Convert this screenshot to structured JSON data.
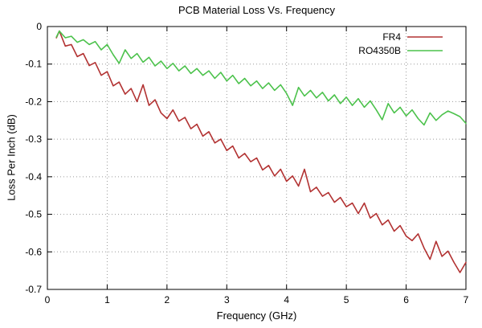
{
  "header": {
    "title": "PCB Material Loss Vs. Frequency"
  },
  "axes": {
    "x_label": "Frequency (GHz)",
    "y_label": "Loss Per Inch (dB)"
  },
  "colors": {
    "background": "#ffffff",
    "axis": "#000000",
    "grid": "#9a9a9a",
    "fr4": "#b23232",
    "ro4350b": "#4cc24c"
  },
  "legend": {
    "position": "top-right",
    "entries": [
      {
        "label": "FR4",
        "color": "#b23232"
      },
      {
        "label": "RO4350B",
        "color": "#4cc24c"
      }
    ]
  },
  "chart_data": {
    "type": "line",
    "title": "PCB Material Loss Vs. Frequency",
    "xlabel": "Frequency (GHz)",
    "ylabel": "Loss Per Inch (dB)",
    "xlim": [
      0,
      7
    ],
    "ylim": [
      -0.7,
      0
    ],
    "grid": true,
    "legend_position": "top-right",
    "xticks": {
      "values": [
        0,
        1,
        2,
        3,
        4,
        5,
        6,
        7
      ],
      "labels": [
        "0",
        "1",
        "2",
        "3",
        "4",
        "5",
        "6",
        "7"
      ]
    },
    "yticks": {
      "values": [
        0,
        -0.1,
        -0.2,
        -0.3,
        -0.4,
        -0.5,
        -0.6,
        -0.7
      ],
      "labels": [
        "0",
        "-0.1",
        "-0.2",
        "-0.3",
        "-0.4",
        "-0.5",
        "-0.6",
        "-0.7"
      ]
    },
    "x": [
      0.15,
      0.2,
      0.3,
      0.4,
      0.5,
      0.6,
      0.7,
      0.8,
      0.9,
      1.0,
      1.1,
      1.2,
      1.3,
      1.4,
      1.5,
      1.6,
      1.7,
      1.8,
      1.9,
      2.0,
      2.1,
      2.2,
      2.3,
      2.4,
      2.5,
      2.6,
      2.7,
      2.8,
      2.9,
      3.0,
      3.1,
      3.2,
      3.3,
      3.4,
      3.5,
      3.6,
      3.7,
      3.8,
      3.9,
      4.0,
      4.1,
      4.2,
      4.3,
      4.4,
      4.5,
      4.6,
      4.7,
      4.8,
      4.9,
      5.0,
      5.1,
      5.2,
      5.3,
      5.4,
      5.5,
      5.6,
      5.7,
      5.8,
      5.9,
      6.0,
      6.1,
      6.2,
      6.3,
      6.4,
      6.5,
      6.6,
      6.7,
      6.8,
      6.9,
      7.0
    ],
    "series": [
      {
        "name": "FR4",
        "color": "#b23232",
        "values": [
          -0.03,
          -0.012,
          -0.052,
          -0.048,
          -0.08,
          -0.072,
          -0.104,
          -0.096,
          -0.13,
          -0.12,
          -0.158,
          -0.148,
          -0.18,
          -0.165,
          -0.2,
          -0.155,
          -0.21,
          -0.195,
          -0.23,
          -0.245,
          -0.222,
          -0.252,
          -0.242,
          -0.272,
          -0.26,
          -0.292,
          -0.28,
          -0.31,
          -0.3,
          -0.33,
          -0.318,
          -0.35,
          -0.338,
          -0.36,
          -0.35,
          -0.382,
          -0.37,
          -0.398,
          -0.38,
          -0.412,
          -0.398,
          -0.425,
          -0.38,
          -0.44,
          -0.428,
          -0.452,
          -0.442,
          -0.468,
          -0.455,
          -0.48,
          -0.47,
          -0.498,
          -0.47,
          -0.51,
          -0.498,
          -0.528,
          -0.515,
          -0.545,
          -0.53,
          -0.558,
          -0.57,
          -0.552,
          -0.59,
          -0.62,
          -0.572,
          -0.612,
          -0.598,
          -0.628,
          -0.655,
          -0.628
        ]
      },
      {
        "name": "RO4350B",
        "color": "#4cc24c",
        "values": [
          -0.028,
          -0.012,
          -0.03,
          -0.026,
          -0.042,
          -0.035,
          -0.048,
          -0.04,
          -0.062,
          -0.048,
          -0.075,
          -0.098,
          -0.062,
          -0.085,
          -0.072,
          -0.095,
          -0.082,
          -0.105,
          -0.092,
          -0.112,
          -0.098,
          -0.118,
          -0.105,
          -0.125,
          -0.112,
          -0.13,
          -0.118,
          -0.138,
          -0.122,
          -0.145,
          -0.13,
          -0.152,
          -0.138,
          -0.158,
          -0.145,
          -0.165,
          -0.15,
          -0.17,
          -0.155,
          -0.178,
          -0.21,
          -0.162,
          -0.185,
          -0.17,
          -0.19,
          -0.175,
          -0.198,
          -0.182,
          -0.205,
          -0.188,
          -0.21,
          -0.192,
          -0.215,
          -0.198,
          -0.222,
          -0.248,
          -0.205,
          -0.23,
          -0.215,
          -0.238,
          -0.222,
          -0.245,
          -0.262,
          -0.23,
          -0.25,
          -0.235,
          -0.225,
          -0.232,
          -0.24,
          -0.258
        ]
      }
    ]
  }
}
